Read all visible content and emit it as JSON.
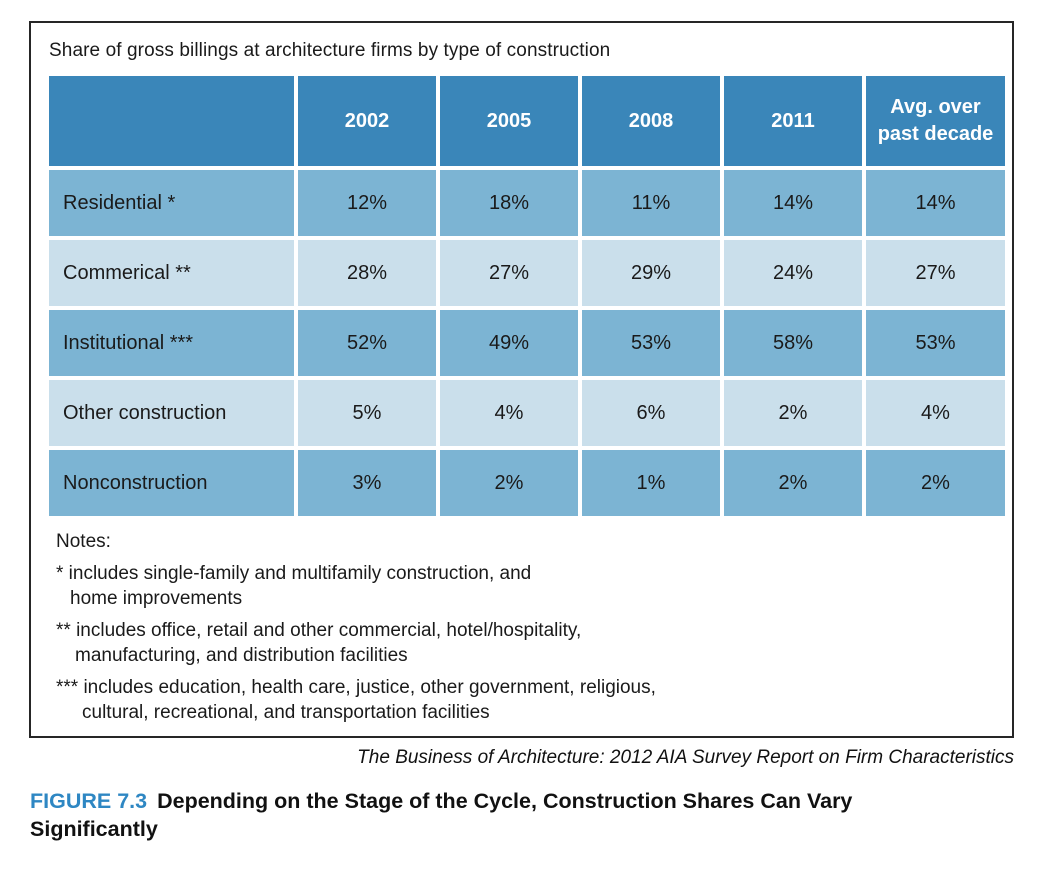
{
  "figure": {
    "box_title": "Share of gross billings at architecture firms by type of construction",
    "table": {
      "columns": [
        "2002",
        "2005",
        "2008",
        "2011",
        "Avg. over past decade"
      ],
      "rows": [
        {
          "label": "Residential *",
          "values": [
            "12%",
            "18%",
            "11%",
            "14%",
            "14%"
          ]
        },
        {
          "label": "Commerical **",
          "values": [
            "28%",
            "27%",
            "29%",
            "24%",
            "27%"
          ]
        },
        {
          "label": "Institutional ***",
          "values": [
            "52%",
            "49%",
            "53%",
            "58%",
            "53%"
          ]
        },
        {
          "label": "Other construction",
          "values": [
            "5%",
            "4%",
            "6%",
            "2%",
            "4%"
          ]
        },
        {
          "label": "Nonconstruction",
          "values": [
            "3%",
            "2%",
            "1%",
            "2%",
            "2%"
          ]
        }
      ]
    },
    "notes": {
      "heading": "Notes:",
      "items": [
        {
          "line1": "* includes single-family and multifamily construction, and",
          "line2": "home improvements"
        },
        {
          "line1": "** includes office, retail and other commercial, hotel/hospitality,",
          "line2": "manufacturing, and distribution facilities"
        },
        {
          "line1": "*** includes education, health care, justice, other government, religious,",
          "line2": "cultural, recreational, and transportation facilities"
        }
      ]
    },
    "source": "The Business of Architecture: 2012 AIA Survey Report on Firm Characteristics",
    "caption": {
      "label": "FIGURE 7.3",
      "text": "Depending on the Stage of the Cycle, Construction Shares Can Vary Significantly"
    }
  },
  "colors": {
    "header_blue": "#3a86b9",
    "row_blue_medium": "#7cb4d3",
    "row_blue_light": "#cadfeb",
    "figure_label_blue": "#2e87c3",
    "box_border": "#262626"
  },
  "chart_data": {
    "type": "table",
    "title": "Share of gross billings at architecture firms by type of construction",
    "categories": [
      "2002",
      "2005",
      "2008",
      "2011",
      "Avg. over past decade"
    ],
    "series": [
      {
        "name": "Residential *",
        "values": [
          12,
          18,
          11,
          14,
          14
        ]
      },
      {
        "name": "Commerical **",
        "values": [
          28,
          27,
          29,
          24,
          27
        ]
      },
      {
        "name": "Institutional ***",
        "values": [
          52,
          49,
          53,
          58,
          53
        ]
      },
      {
        "name": "Other construction",
        "values": [
          5,
          4,
          6,
          2,
          4
        ]
      },
      {
        "name": "Nonconstruction",
        "values": [
          3,
          2,
          1,
          2,
          2
        ]
      }
    ],
    "units": "percent",
    "source": "The Business of Architecture: 2012 AIA Survey Report on Firm Characteristics"
  }
}
